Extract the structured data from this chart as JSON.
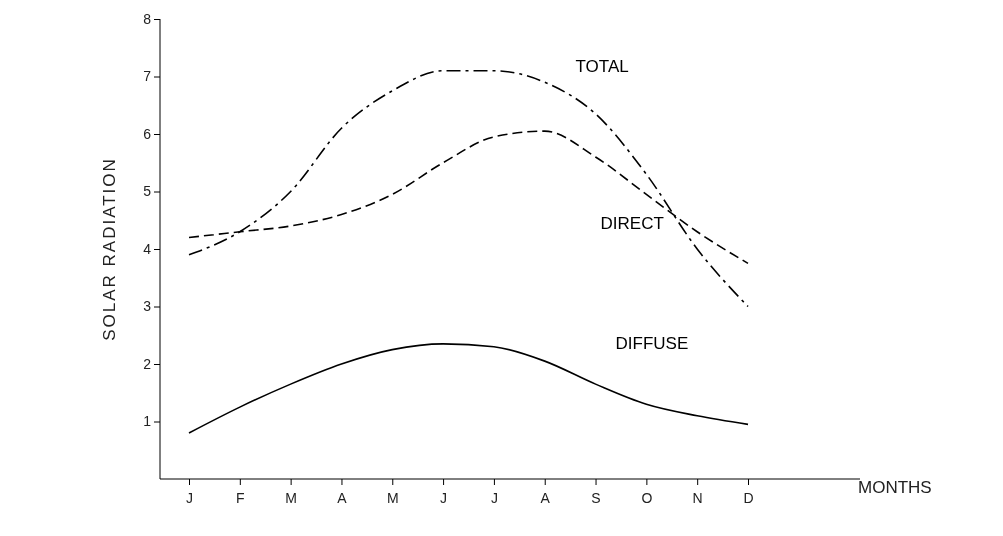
{
  "chart_data": {
    "type": "line",
    "xlabel": "MONTHS",
    "ylabel": "SOLAR RADIATION",
    "categories": [
      "J",
      "F",
      "M",
      "A",
      "M",
      "J",
      "J",
      "A",
      "S",
      "O",
      "N",
      "D"
    ],
    "ylim": [
      0,
      8
    ],
    "yticks": [
      1,
      2,
      3,
      4,
      5,
      6,
      7,
      8
    ],
    "grid": false,
    "legend": false,
    "marker": "none",
    "series": [
      {
        "name": "TOTAL",
        "color": "#000000",
        "line_style": "dashdot",
        "values": [
          3.9,
          4.3,
          5.0,
          6.1,
          6.75,
          7.1,
          7.1,
          6.9,
          6.35,
          5.3,
          4.0,
          3.0
        ]
      },
      {
        "name": "DIRECT",
        "color": "#000000",
        "line_style": "dashed",
        "values": [
          4.2,
          4.3,
          4.4,
          4.6,
          4.95,
          5.5,
          5.95,
          6.05,
          5.6,
          4.95,
          4.3,
          3.75
        ]
      },
      {
        "name": "DIFFUSE",
        "color": "#000000",
        "line_style": "solid",
        "values": [
          0.8,
          1.25,
          1.65,
          2.0,
          2.25,
          2.35,
          2.3,
          2.05,
          1.65,
          1.3,
          1.1,
          0.95
        ]
      }
    ]
  }
}
